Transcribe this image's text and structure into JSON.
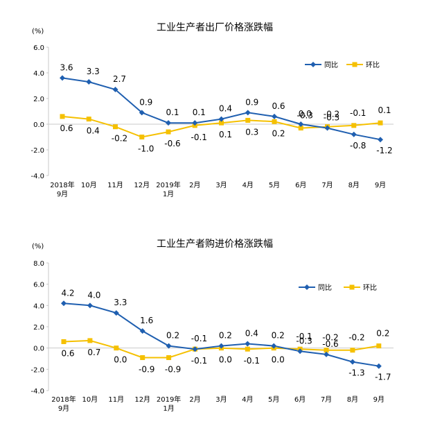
{
  "colors": {
    "yoy": "#1f5fb0",
    "mom": "#f5c000",
    "axis": "#c8c8c8"
  },
  "chart_data": [
    {
      "type": "line",
      "title": "工业生产者出厂价格涨跌幅",
      "unit": "(%)",
      "categories": [
        [
          "2018年",
          "9月"
        ],
        [
          "10月"
        ],
        [
          "11月"
        ],
        [
          "12月"
        ],
        [
          "2019年",
          "1月"
        ],
        [
          "2月"
        ],
        [
          "3月"
        ],
        [
          "4月"
        ],
        [
          "5月"
        ],
        [
          "6月"
        ],
        [
          "7月"
        ],
        [
          "8月"
        ],
        [
          "9月"
        ]
      ],
      "ylim": [
        -4.0,
        6.0
      ],
      "yticks": [
        "6.0",
        "4.0",
        "2.0",
        "0.0",
        "-2.0",
        "-4.0"
      ],
      "legend": "top-right",
      "series": [
        {
          "name": "同比",
          "values": [
            3.6,
            3.3,
            2.7,
            0.9,
            0.1,
            0.1,
            0.4,
            0.9,
            0.6,
            0.0,
            -0.3,
            -0.8,
            -1.2
          ],
          "labels": [
            "3.6",
            "3.3",
            "2.7",
            "0.9",
            "0.1",
            "0.1",
            "0.4",
            "0.9",
            "0.6",
            "0.0",
            "-0.3",
            "-0.8",
            "-1.2"
          ]
        },
        {
          "name": "环比",
          "values": [
            0.6,
            0.4,
            -0.2,
            -1.0,
            -0.6,
            -0.1,
            0.1,
            0.3,
            0.2,
            -0.3,
            -0.2,
            -0.1,
            0.1
          ],
          "labels": [
            "0.6",
            "0.4",
            "-0.2",
            "-1.0",
            "-0.6",
            "-0.1",
            "0.1",
            "0.3",
            "0.2",
            "-0.3",
            "-0.2",
            "-0.1",
            "0.1"
          ]
        }
      ]
    },
    {
      "type": "line",
      "title": "工业生产者购进价格涨跌幅",
      "unit": "(%)",
      "categories": [
        [
          "2018年",
          "9月"
        ],
        [
          "10月"
        ],
        [
          "11月"
        ],
        [
          "12月"
        ],
        [
          "2019年",
          "1月"
        ],
        [
          "2月"
        ],
        [
          "3月"
        ],
        [
          "4月"
        ],
        [
          "5月"
        ],
        [
          "6月"
        ],
        [
          "7月"
        ],
        [
          "8月"
        ],
        [
          "9月"
        ]
      ],
      "ylim": [
        -4.0,
        8.0
      ],
      "yticks": [
        "8.0",
        "6.0",
        "4.0",
        "2.0",
        "0.0",
        "-2.0",
        "-4.0"
      ],
      "legend": "top-right",
      "series": [
        {
          "name": "同比",
          "values": [
            4.2,
            4.0,
            3.3,
            1.6,
            0.2,
            -0.1,
            0.2,
            0.4,
            0.2,
            -0.3,
            -0.6,
            -1.3,
            -1.7
          ],
          "labels": [
            "4.2",
            "4.0",
            "3.3",
            "1.6",
            "0.2",
            "-0.1",
            "0.2",
            "0.4",
            "0.2",
            "-0.3",
            "-0.6",
            "-1.3",
            "-1.7"
          ]
        },
        {
          "name": "环比",
          "values": [
            0.6,
            0.7,
            0.0,
            -0.9,
            -0.9,
            -0.1,
            0.0,
            -0.1,
            0.0,
            -0.1,
            -0.2,
            -0.2,
            0.2
          ],
          "labels": [
            "0.6",
            "0.7",
            "0.0",
            "-0.9",
            "-0.9",
            "-0.1",
            "0.0",
            "-0.1",
            "0.0",
            "-0.1",
            "-0.2",
            "-0.2",
            "0.2"
          ]
        }
      ]
    }
  ]
}
